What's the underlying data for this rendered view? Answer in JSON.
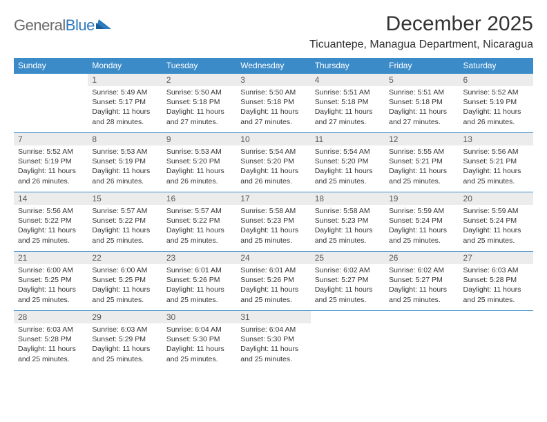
{
  "logo": {
    "text_general": "General",
    "text_blue": "Blue"
  },
  "title": "December 2025",
  "location": "Ticuantepe, Managua Department, Nicaragua",
  "colors": {
    "header_bg": "#3b8bc9",
    "header_text": "#ffffff",
    "daynum_bg": "#ececec",
    "border": "#3b8bc9",
    "text": "#333333",
    "logo_gray": "#6a6a6a",
    "logo_blue": "#2d79bd"
  },
  "weekdays": [
    "Sunday",
    "Monday",
    "Tuesday",
    "Wednesday",
    "Thursday",
    "Friday",
    "Saturday"
  ],
  "weeks": [
    [
      null,
      {
        "n": "1",
        "sr": "5:49 AM",
        "ss": "5:17 PM",
        "dl": "11 hours and 28 minutes."
      },
      {
        "n": "2",
        "sr": "5:50 AM",
        "ss": "5:18 PM",
        "dl": "11 hours and 27 minutes."
      },
      {
        "n": "3",
        "sr": "5:50 AM",
        "ss": "5:18 PM",
        "dl": "11 hours and 27 minutes."
      },
      {
        "n": "4",
        "sr": "5:51 AM",
        "ss": "5:18 PM",
        "dl": "11 hours and 27 minutes."
      },
      {
        "n": "5",
        "sr": "5:51 AM",
        "ss": "5:18 PM",
        "dl": "11 hours and 27 minutes."
      },
      {
        "n": "6",
        "sr": "5:52 AM",
        "ss": "5:19 PM",
        "dl": "11 hours and 26 minutes."
      }
    ],
    [
      {
        "n": "7",
        "sr": "5:52 AM",
        "ss": "5:19 PM",
        "dl": "11 hours and 26 minutes."
      },
      {
        "n": "8",
        "sr": "5:53 AM",
        "ss": "5:19 PM",
        "dl": "11 hours and 26 minutes."
      },
      {
        "n": "9",
        "sr": "5:53 AM",
        "ss": "5:20 PM",
        "dl": "11 hours and 26 minutes."
      },
      {
        "n": "10",
        "sr": "5:54 AM",
        "ss": "5:20 PM",
        "dl": "11 hours and 26 minutes."
      },
      {
        "n": "11",
        "sr": "5:54 AM",
        "ss": "5:20 PM",
        "dl": "11 hours and 25 minutes."
      },
      {
        "n": "12",
        "sr": "5:55 AM",
        "ss": "5:21 PM",
        "dl": "11 hours and 25 minutes."
      },
      {
        "n": "13",
        "sr": "5:56 AM",
        "ss": "5:21 PM",
        "dl": "11 hours and 25 minutes."
      }
    ],
    [
      {
        "n": "14",
        "sr": "5:56 AM",
        "ss": "5:22 PM",
        "dl": "11 hours and 25 minutes."
      },
      {
        "n": "15",
        "sr": "5:57 AM",
        "ss": "5:22 PM",
        "dl": "11 hours and 25 minutes."
      },
      {
        "n": "16",
        "sr": "5:57 AM",
        "ss": "5:22 PM",
        "dl": "11 hours and 25 minutes."
      },
      {
        "n": "17",
        "sr": "5:58 AM",
        "ss": "5:23 PM",
        "dl": "11 hours and 25 minutes."
      },
      {
        "n": "18",
        "sr": "5:58 AM",
        "ss": "5:23 PM",
        "dl": "11 hours and 25 minutes."
      },
      {
        "n": "19",
        "sr": "5:59 AM",
        "ss": "5:24 PM",
        "dl": "11 hours and 25 minutes."
      },
      {
        "n": "20",
        "sr": "5:59 AM",
        "ss": "5:24 PM",
        "dl": "11 hours and 25 minutes."
      }
    ],
    [
      {
        "n": "21",
        "sr": "6:00 AM",
        "ss": "5:25 PM",
        "dl": "11 hours and 25 minutes."
      },
      {
        "n": "22",
        "sr": "6:00 AM",
        "ss": "5:25 PM",
        "dl": "11 hours and 25 minutes."
      },
      {
        "n": "23",
        "sr": "6:01 AM",
        "ss": "5:26 PM",
        "dl": "11 hours and 25 minutes."
      },
      {
        "n": "24",
        "sr": "6:01 AM",
        "ss": "5:26 PM",
        "dl": "11 hours and 25 minutes."
      },
      {
        "n": "25",
        "sr": "6:02 AM",
        "ss": "5:27 PM",
        "dl": "11 hours and 25 minutes."
      },
      {
        "n": "26",
        "sr": "6:02 AM",
        "ss": "5:27 PM",
        "dl": "11 hours and 25 minutes."
      },
      {
        "n": "27",
        "sr": "6:03 AM",
        "ss": "5:28 PM",
        "dl": "11 hours and 25 minutes."
      }
    ],
    [
      {
        "n": "28",
        "sr": "6:03 AM",
        "ss": "5:28 PM",
        "dl": "11 hours and 25 minutes."
      },
      {
        "n": "29",
        "sr": "6:03 AM",
        "ss": "5:29 PM",
        "dl": "11 hours and 25 minutes."
      },
      {
        "n": "30",
        "sr": "6:04 AM",
        "ss": "5:30 PM",
        "dl": "11 hours and 25 minutes."
      },
      {
        "n": "31",
        "sr": "6:04 AM",
        "ss": "5:30 PM",
        "dl": "11 hours and 25 minutes."
      },
      null,
      null,
      null
    ]
  ],
  "labels": {
    "sunrise": "Sunrise:",
    "sunset": "Sunset:",
    "daylight": "Daylight:"
  }
}
